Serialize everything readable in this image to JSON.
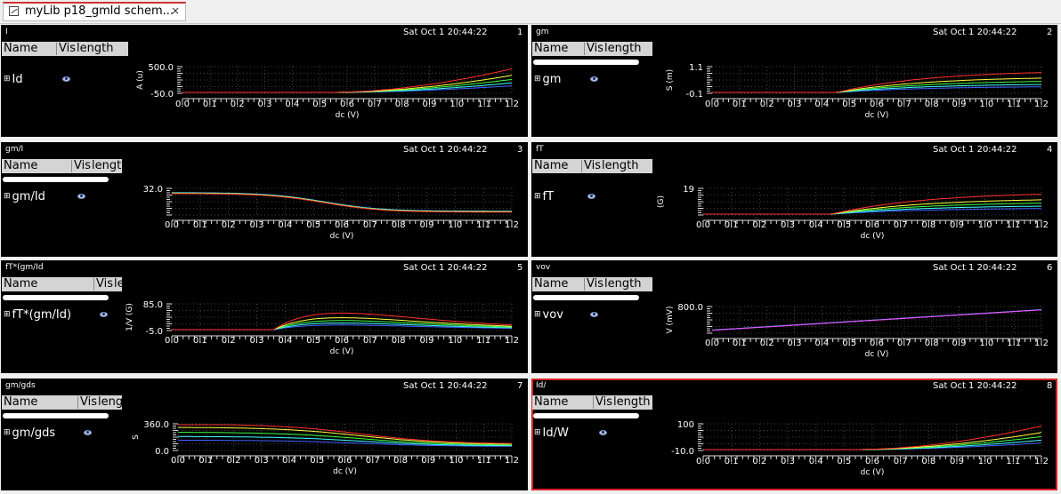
{
  "tab": {
    "label": "myLib p18_gmld schem...",
    "close": "×"
  },
  "legend_header": {
    "name": "Name",
    "vis": "Vis",
    "length": "length"
  },
  "x_ticks": [
    "0.0",
    "0.1",
    "0.2",
    "0.3",
    "0.4",
    "0.5",
    "0.6",
    "0.7",
    "0.8",
    "0.9",
    "1.0",
    "1.1",
    "1.2"
  ],
  "xlabel": "dc (V)",
  "panels": [
    {
      "title": "I",
      "date": "Sat Oct 1 20:44:22",
      "number": "1",
      "signal": "Id",
      "ylabel": "A (u)",
      "ytop": "500.0",
      "ybot": "-50.0"
    },
    {
      "title": "gm",
      "date": "Sat Oct 1 20:44:22",
      "number": "2",
      "signal": "gm",
      "ylabel": "S (m)",
      "ytop": "1.1",
      "ybot": "-0.1"
    },
    {
      "title": "gm/I",
      "date": "Sat Oct 1 20:44:22",
      "number": "3",
      "signal": "gm/Id",
      "ylabel": "",
      "ytop": "32.0",
      "ybot": ""
    },
    {
      "title": "fT",
      "date": "Sat Oct 1 20:44:22",
      "number": "4",
      "signal": "fT",
      "ylabel": "(G)",
      "ytop": "19",
      "ybot": ""
    },
    {
      "title": "fT*(gm/Id",
      "date": "Sat Oct 1 20:44:22",
      "number": "5",
      "signal": "fT*(gm/Id)",
      "ylabel": "1/V (G)",
      "ytop": "85.0",
      "ybot": "-5.0"
    },
    {
      "title": "vov",
      "date": "Sat Oct 1 20:44:22",
      "number": "6",
      "signal": "vov",
      "ylabel": "V (mV)",
      "ytop": "800.0",
      "ybot": ""
    },
    {
      "title": "gm/gds",
      "date": "Sat Oct 1 20:44:22",
      "number": "7",
      "signal": "gm/gds",
      "ylabel": "S",
      "ytop": "360.0",
      "ybot": "0.0"
    },
    {
      "title": "Id/",
      "date": "Sat Oct 1 20:44:22",
      "number": "8",
      "signal": "Id/W",
      "ylabel": "",
      "ytop": "100",
      "ybot": "-10.0"
    }
  ],
  "series_colors": [
    "#ff3030",
    "#ffff40",
    "#40ff40",
    "#40ffff",
    "#4060ff"
  ]
}
